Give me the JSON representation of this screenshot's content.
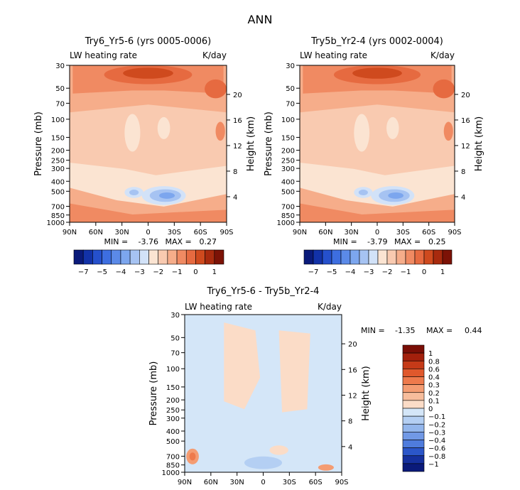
{
  "chart_data": {
    "type": "contour",
    "title": "ANN",
    "contour_levels_main": [
      "-7",
      "-6",
      "-5",
      "-4.5",
      "-4",
      "-3.5",
      "-3",
      "-2.5",
      "-2",
      "-1.5",
      "-1",
      "-0.5",
      "0",
      "0.5",
      "1"
    ],
    "colorbar_labels_main": [
      "-7",
      "-5",
      "-4",
      "-3",
      "-2",
      "-1",
      "0",
      "1"
    ],
    "diff_levels": [
      "1",
      "0.8",
      "0.6",
      "0.4",
      "0.3",
      "0.2",
      "0.1",
      "0",
      "-0.1",
      "-0.2",
      "-0.3",
      "-0.4",
      "-0.6",
      "-0.8",
      "-1"
    ],
    "colors": {
      "main_scale": [
        "#0a1a7a",
        "#1232a8",
        "#2550cc",
        "#3d6ee0",
        "#5b8ae8",
        "#7ca6ee",
        "#a6c3f2",
        "#d2e2f8",
        "#fbe4d2",
        "#f9cab0",
        "#f6ad8a",
        "#f08a62",
        "#e66a40",
        "#cf4a1e",
        "#a82a0e",
        "#7c1206"
      ],
      "diff_scale": [
        "#7a0e06",
        "#a3200c",
        "#c53a18",
        "#e0582c",
        "#ee7a4c",
        "#f49c72",
        "#f7bd9c",
        "#fbdcc7",
        "#d4e6f8",
        "#b4cff3",
        "#93b6ec",
        "#7199e6",
        "#4f7cdd",
        "#2b56c9",
        "#15309e",
        "#0a1a7a"
      ]
    },
    "panels": [
      {
        "id": "left",
        "title": "Try6_Yr5-6 (yrs 0005-0006)",
        "variable": "LW heating rate",
        "units": "K/day",
        "xlabel": "",
        "ylabel": "Pressure (mb)",
        "right_label": "Height (km)",
        "x_ticks": [
          "90N",
          "60N",
          "30N",
          "0",
          "30S",
          "60S",
          "90S"
        ],
        "x_values": [
          90,
          60,
          30,
          0,
          -30,
          -60,
          -90
        ],
        "y_ticks": [
          "30",
          "50",
          "70",
          "100",
          "150",
          "200",
          "250",
          "300",
          "400",
          "500",
          "700",
          "850",
          "1000"
        ],
        "y_values": [
          30,
          50,
          70,
          100,
          150,
          200,
          250,
          300,
          400,
          500,
          700,
          850,
          1000
        ],
        "height_ticks": [
          "20",
          "16",
          "12",
          "8",
          "4"
        ],
        "height_values": [
          20,
          16,
          12,
          8,
          4
        ],
        "min": "-3.76",
        "max": "0.27",
        "min_label": "MIN =",
        "max_label": "MAX ="
      },
      {
        "id": "right",
        "title": "Try5b_Yr2-4 (yrs 0002-0004)",
        "variable": "LW heating rate",
        "units": "K/day",
        "ylabel": "Pressure (mb)",
        "right_label": "Height (km)",
        "x_ticks": [
          "90N",
          "60N",
          "30N",
          "0",
          "30S",
          "60S",
          "90S"
        ],
        "x_values": [
          90,
          60,
          30,
          0,
          -30,
          -60,
          -90
        ],
        "y_ticks": [
          "30",
          "50",
          "70",
          "100",
          "150",
          "200",
          "250",
          "300",
          "400",
          "500",
          "700",
          "850",
          "1000"
        ],
        "y_values": [
          30,
          50,
          70,
          100,
          150,
          200,
          250,
          300,
          400,
          500,
          700,
          850,
          1000
        ],
        "height_ticks": [
          "20",
          "16",
          "12",
          "8",
          "4"
        ],
        "height_values": [
          20,
          16,
          12,
          8,
          4
        ],
        "min": "-3.79",
        "max": "0.25",
        "min_label": "MIN =",
        "max_label": "MAX ="
      },
      {
        "id": "diff",
        "title": "Try6_Yr5-6 - Try5b_Yr2-4",
        "variable": "LW heating rate",
        "units": "K/day",
        "ylabel": "Pressure (mb)",
        "right_label": "Height (km)",
        "x_ticks": [
          "90N",
          "60N",
          "30N",
          "0",
          "30S",
          "60S",
          "90S"
        ],
        "x_values": [
          90,
          60,
          30,
          0,
          -30,
          -60,
          -90
        ],
        "y_ticks": [
          "30",
          "50",
          "70",
          "100",
          "150",
          "200",
          "250",
          "300",
          "400",
          "500",
          "700",
          "850",
          "1000"
        ],
        "y_values": [
          30,
          50,
          70,
          100,
          150,
          200,
          250,
          300,
          400,
          500,
          700,
          850,
          1000
        ],
        "height_ticks": [
          "20",
          "16",
          "12",
          "8",
          "4"
        ],
        "height_values": [
          20,
          16,
          12,
          8,
          4
        ],
        "min": "-1.35",
        "max": "0.44",
        "min_label": "MIN =",
        "max_label": "MAX ="
      }
    ]
  }
}
